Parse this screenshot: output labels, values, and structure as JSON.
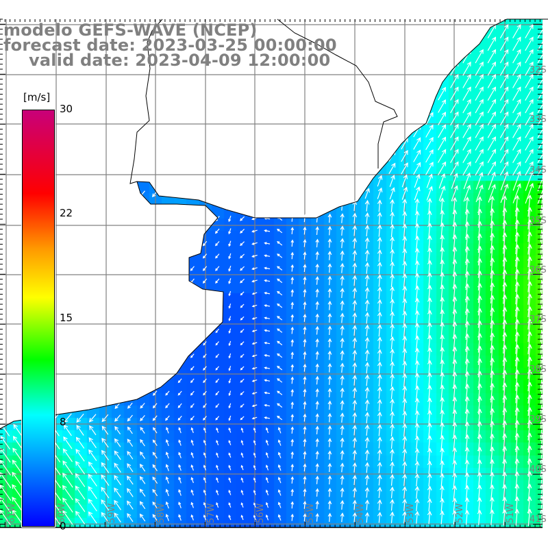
{
  "header": {
    "model": "modelo GEFS-WAVE (NCEP)",
    "forecast_date": "forecast date: 2023-03-25 00:00:00",
    "valid_date": "valid date: 2023-04-09 12:00:00"
  },
  "colorbar": {
    "unit": "[m/s]",
    "ticks": [
      "30",
      "22",
      "15",
      "8",
      "0"
    ],
    "tick_values": [
      30,
      22,
      15,
      8,
      0
    ],
    "colors": {
      "0": "#0000ff",
      "8": "#00ffff",
      "12": "#00ff00",
      "16.5": "#ffff00",
      "20": "#ff9900",
      "24": "#ff0000",
      "30": "#c8007a"
    }
  },
  "map": {
    "field": "wind speed with direction arrows",
    "lon_labels": [
      "61W",
      "60W",
      "59W",
      "58W",
      "57W",
      "56W",
      "55W",
      "54W",
      "53W",
      "52W",
      "51W"
    ],
    "lat_labels": [
      "32S",
      "33S",
      "34S",
      "35S",
      "36S",
      "37S",
      "38S",
      "39S",
      "40S",
      "41S"
    ],
    "grid_color": "#808080",
    "land_color": "#ffffff"
  }
}
